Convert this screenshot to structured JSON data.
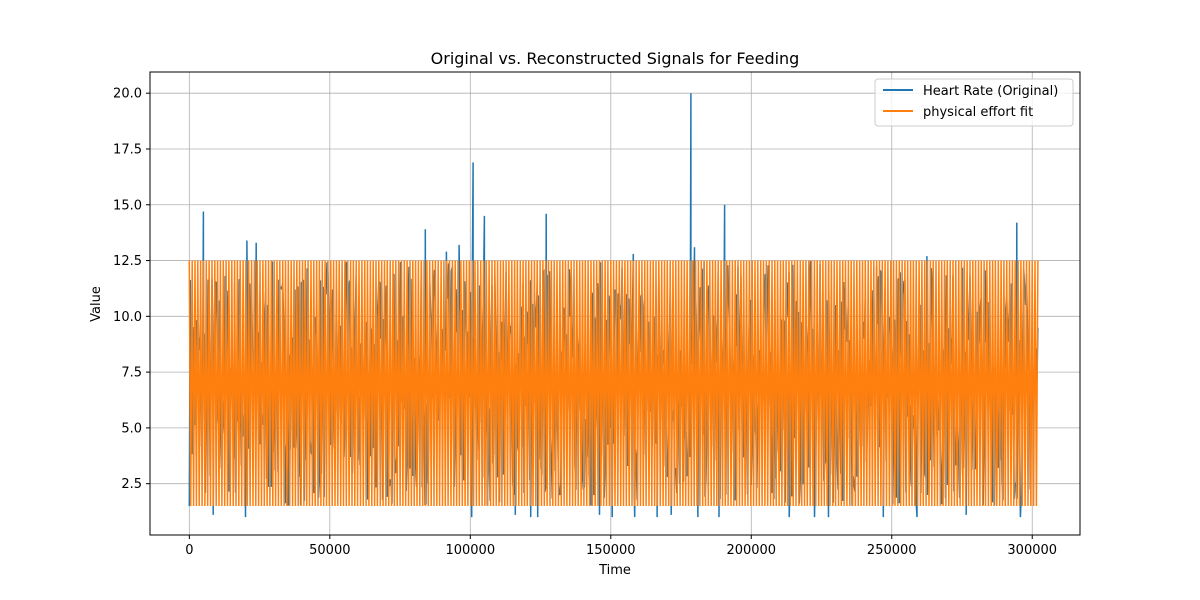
{
  "chart_data": {
    "type": "line",
    "title": "Original vs. Reconstructed Signals for Feeding",
    "xlabel": "Time",
    "ylabel": "Value",
    "xlim": [
      -14000,
      317000
    ],
    "ylim": [
      0.2,
      20.95
    ],
    "x_ticks": [
      0,
      50000,
      100000,
      150000,
      200000,
      250000,
      300000
    ],
    "x_tick_labels": [
      "0",
      "50000",
      "100000",
      "150000",
      "200000",
      "250000",
      "300000"
    ],
    "y_ticks": [
      2.5,
      5.0,
      7.5,
      10.0,
      12.5,
      15.0,
      17.5,
      20.0
    ],
    "y_tick_labels": [
      "2.5",
      "5.0",
      "7.5",
      "10.0",
      "12.5",
      "15.0",
      "17.5",
      "20.0"
    ],
    "grid": true,
    "legend_position": "upper-right",
    "series": [
      {
        "name": "Heart Rate (Original)",
        "color": "#1f77b4",
        "x_range": [
          0,
          302000
        ],
        "baseline_range": [
          1.5,
          12.5
        ],
        "spikes": [
          {
            "x": 5000,
            "y": 14.7
          },
          {
            "x": 20500,
            "y": 13.4
          },
          {
            "x": 23800,
            "y": 13.3
          },
          {
            "x": 84000,
            "y": 13.9
          },
          {
            "x": 91500,
            "y": 12.9
          },
          {
            "x": 96000,
            "y": 13.2
          },
          {
            "x": 101000,
            "y": 16.9
          },
          {
            "x": 105000,
            "y": 14.5
          },
          {
            "x": 127000,
            "y": 14.6
          },
          {
            "x": 158000,
            "y": 12.8
          },
          {
            "x": 178500,
            "y": 20.0
          },
          {
            "x": 179800,
            "y": 13.1
          },
          {
            "x": 190500,
            "y": 15.0
          },
          {
            "x": 262500,
            "y": 12.7
          },
          {
            "x": 294500,
            "y": 14.2
          }
        ],
        "dips": [
          {
            "x": 8500,
            "y": 1.1
          },
          {
            "x": 20000,
            "y": 1.0
          },
          {
            "x": 100500,
            "y": 1.0
          },
          {
            "x": 116000,
            "y": 1.1
          },
          {
            "x": 121500,
            "y": 1.0
          },
          {
            "x": 124000,
            "y": 1.0
          },
          {
            "x": 146000,
            "y": 1.1
          },
          {
            "x": 150500,
            "y": 1.0
          },
          {
            "x": 158500,
            "y": 1.0
          },
          {
            "x": 166500,
            "y": 1.0
          },
          {
            "x": 171500,
            "y": 1.1
          },
          {
            "x": 181000,
            "y": 1.0
          },
          {
            "x": 188500,
            "y": 1.0
          },
          {
            "x": 213500,
            "y": 1.0
          },
          {
            "x": 222500,
            "y": 1.0
          },
          {
            "x": 227500,
            "y": 1.0
          },
          {
            "x": 247000,
            "y": 1.0
          },
          {
            "x": 259000,
            "y": 1.0
          },
          {
            "x": 276500,
            "y": 1.1
          },
          {
            "x": 295800,
            "y": 1.0
          }
        ]
      },
      {
        "name": "physical effort fit",
        "color": "#ff7f0e",
        "x_range": [
          0,
          302000
        ],
        "min": 1.5,
        "max": 12.5,
        "oscillations": 300
      }
    ]
  }
}
